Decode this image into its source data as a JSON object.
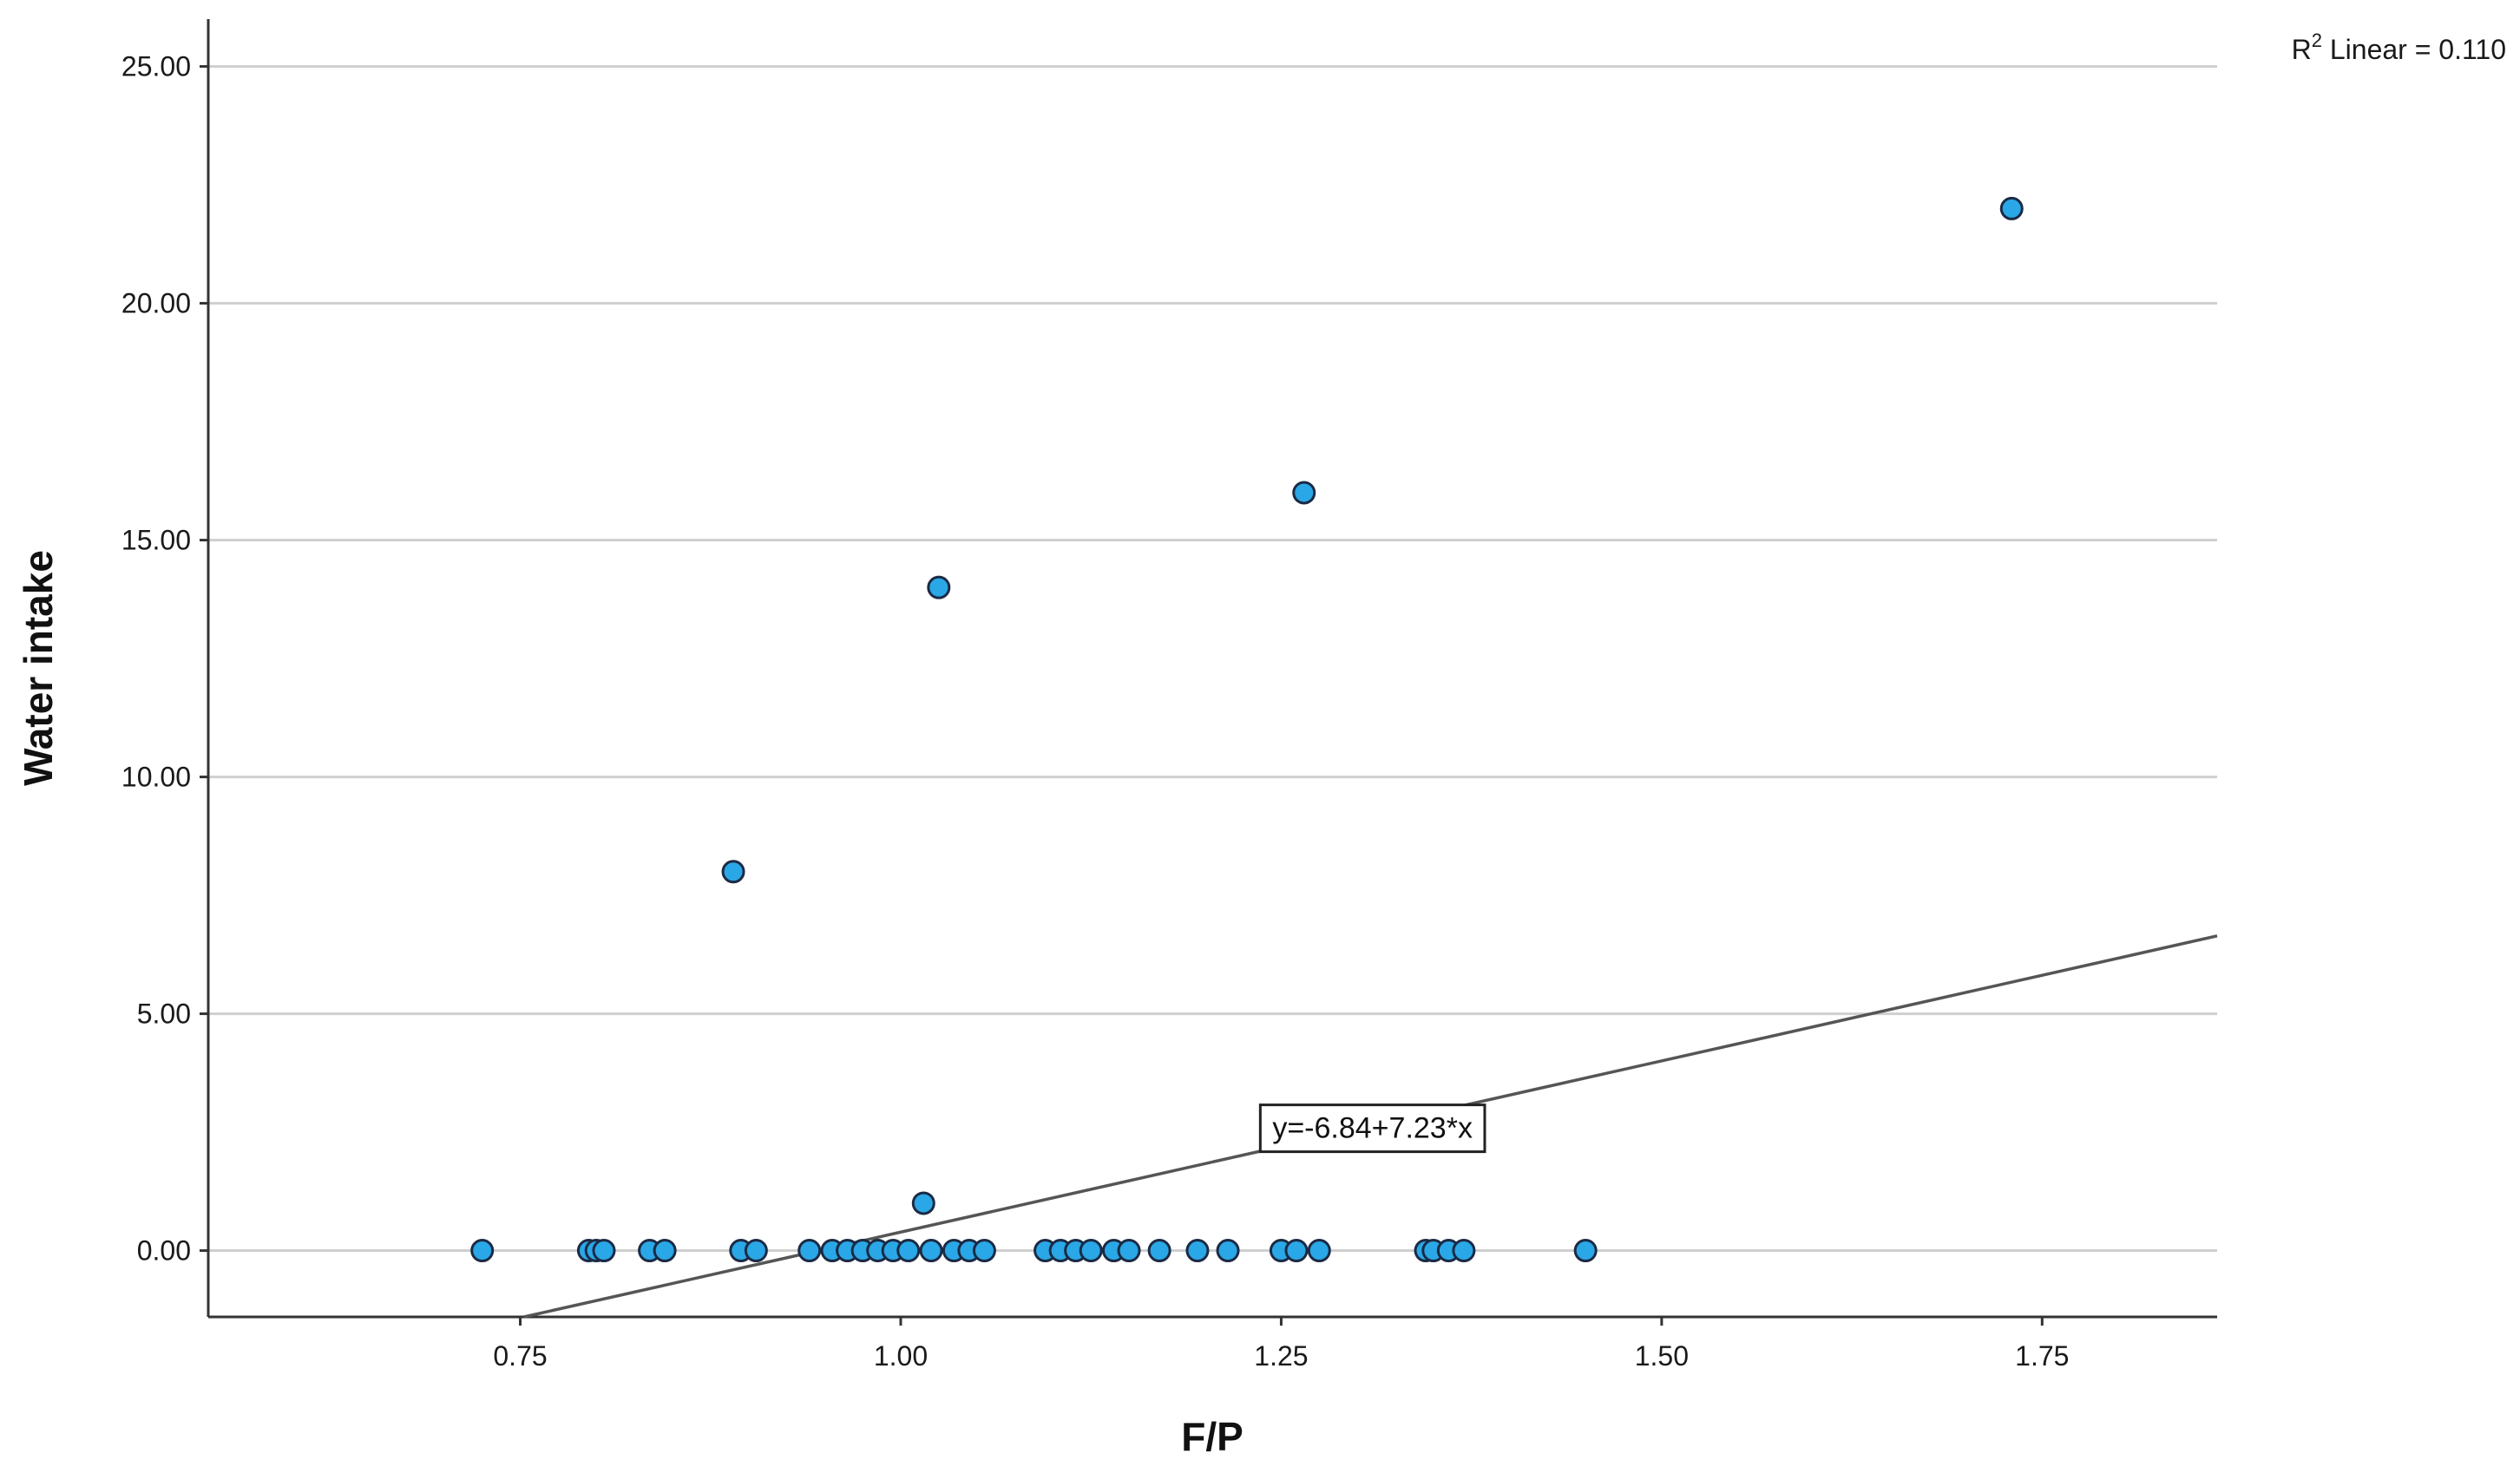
{
  "chart_data": {
    "type": "scatter",
    "xlabel": "F/P",
    "ylabel": "Water intake",
    "xlim": [
      0.545,
      1.865
    ],
    "ylim": [
      -1.4,
      26.0
    ],
    "x_ticks": [
      0.75,
      1.0,
      1.25,
      1.5,
      1.75
    ],
    "x_tick_labels": [
      "0.75",
      "1.00",
      "1.25",
      "1.50",
      "1.75"
    ],
    "y_ticks": [
      0,
      5,
      10,
      15,
      20,
      25
    ],
    "y_tick_labels": [
      "0.00",
      "5.00",
      "10.00",
      "15.00",
      "20.00",
      "25.00"
    ],
    "grid": "horizontal",
    "points": [
      [
        0.725,
        0
      ],
      [
        0.795,
        0
      ],
      [
        0.8,
        0
      ],
      [
        0.805,
        0
      ],
      [
        0.835,
        0
      ],
      [
        0.845,
        0
      ],
      [
        0.895,
        0
      ],
      [
        0.905,
        0
      ],
      [
        0.94,
        0
      ],
      [
        0.955,
        0
      ],
      [
        0.965,
        0
      ],
      [
        0.975,
        0
      ],
      [
        0.985,
        0
      ],
      [
        0.995,
        0
      ],
      [
        1.005,
        0
      ],
      [
        1.02,
        0
      ],
      [
        1.035,
        0
      ],
      [
        1.045,
        0
      ],
      [
        1.055,
        0
      ],
      [
        1.095,
        0
      ],
      [
        1.105,
        0
      ],
      [
        1.115,
        0
      ],
      [
        1.125,
        0
      ],
      [
        1.14,
        0
      ],
      [
        1.15,
        0
      ],
      [
        1.17,
        0
      ],
      [
        1.195,
        0
      ],
      [
        1.215,
        0
      ],
      [
        1.25,
        0
      ],
      [
        1.26,
        0
      ],
      [
        1.275,
        0
      ],
      [
        1.345,
        0
      ],
      [
        1.35,
        0
      ],
      [
        1.36,
        0
      ],
      [
        1.37,
        0
      ],
      [
        1.45,
        0
      ],
      [
        0.89,
        8
      ],
      [
        1.015,
        1
      ],
      [
        1.025,
        14
      ],
      [
        1.265,
        16
      ],
      [
        1.73,
        22
      ]
    ],
    "fit_line": {
      "intercept": -6.84,
      "slope": 7.23,
      "equation_label": "y=-6.84+7.23*x",
      "label_anchor": [
        1.31,
        2.6
      ]
    },
    "annotation": {
      "r2_prefix": "R",
      "r2_sup": "2",
      "r2_rest": " Linear = 0.110"
    },
    "colors": {
      "point_fill": "#2aa7e6",
      "point_stroke": "#1b2a44",
      "fit_line": "#555555",
      "grid": "#cfcfcf",
      "axis": "#333333"
    }
  }
}
